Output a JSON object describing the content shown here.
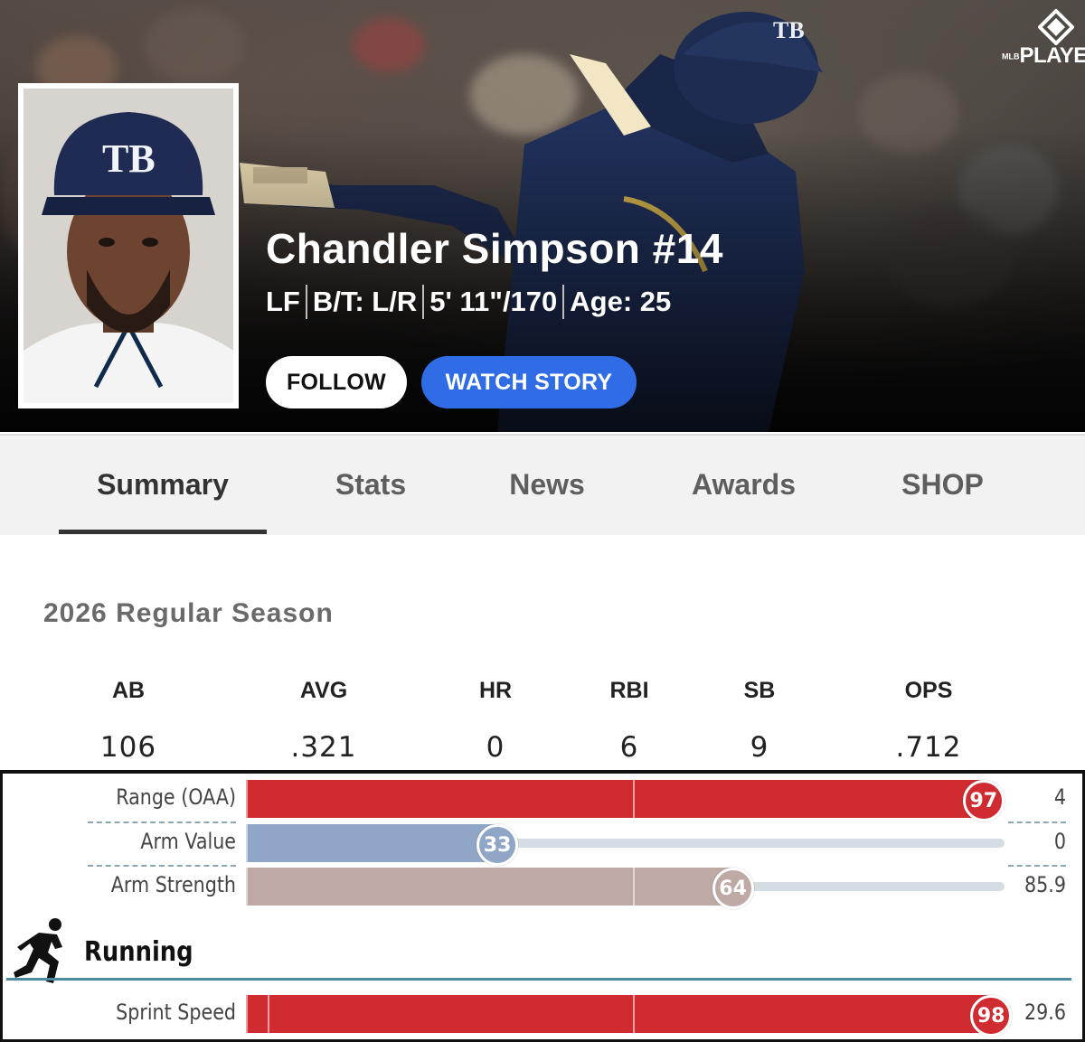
{
  "hero": {
    "brand": {
      "prefix": "MLB",
      "text": "PLAYERS"
    },
    "player": {
      "name": "Chandler Simpson #14",
      "position": "LF",
      "bats_throws": "B/T: L/R",
      "height_weight": "5' 11\"/170",
      "age": "Age: 25"
    },
    "buttons": {
      "follow": "FOLLOW",
      "watch_story": "WATCH STORY"
    },
    "team_cap_text": "TB"
  },
  "tabs": [
    {
      "label": "Summary",
      "active": true
    },
    {
      "label": "Stats",
      "active": false
    },
    {
      "label": "News",
      "active": false
    },
    {
      "label": "Awards",
      "active": false
    },
    {
      "label": "SHOP",
      "active": false
    }
  ],
  "season": {
    "title": "2026 Regular Season",
    "stats": [
      {
        "label": "AB",
        "value": "106"
      },
      {
        "label": "AVG",
        "value": ".321"
      },
      {
        "label": "HR",
        "value": "0"
      },
      {
        "label": "RBI",
        "value": "6"
      },
      {
        "label": "SB",
        "value": "9"
      },
      {
        "label": "OPS",
        "value": ".712"
      }
    ]
  },
  "metrics": {
    "fielding": [
      {
        "label": "Range (OAA)",
        "percentile": 97,
        "value": "4",
        "color": "#cf2b30"
      },
      {
        "label": "Arm Value",
        "percentile": 33,
        "value": "0",
        "color": "#8fa6c7"
      },
      {
        "label": "Arm Strength",
        "percentile": 64,
        "value": "85.9",
        "color": "#bfa9a4"
      }
    ],
    "running_title": "Running",
    "running": [
      {
        "label": "Sprint Speed",
        "percentile": 98,
        "value": "29.6",
        "color": "#cf2b30"
      }
    ]
  },
  "colors": {
    "watch_story": "#2f6ce5",
    "tab_bg": "#f2f2f2",
    "rule": "#4d8aa0"
  },
  "icons": [
    "mlb-players-logo-icon",
    "runner-icon"
  ]
}
